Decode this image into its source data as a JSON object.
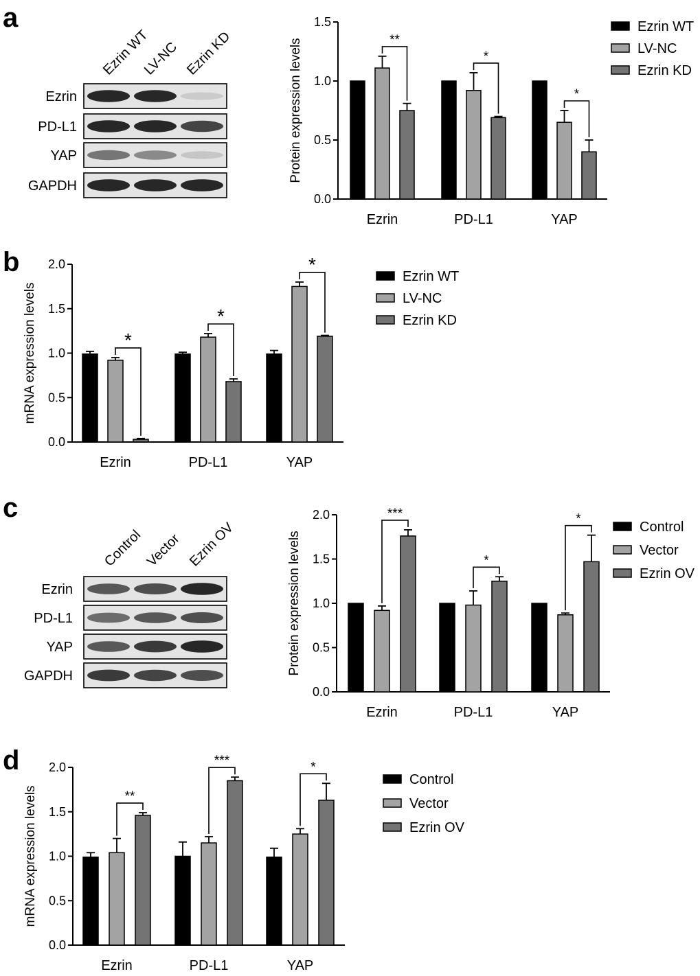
{
  "panel_labels": [
    "a",
    "b",
    "c",
    "d"
  ],
  "colors": {
    "black": "#000000",
    "light_gray": "#a3a3a3",
    "dark_gray": "#747474",
    "membrane": "#e4e4e4",
    "band": "#1c1c1c"
  },
  "blots": [
    {
      "lanes": [
        "Ezrin WT",
        "LV-NC",
        "Ezrin KD"
      ],
      "rows": [
        "Ezrin",
        "PD-L1",
        "YAP",
        "GAPDH"
      ],
      "band_intensity": [
        [
          0.95,
          0.95,
          0.12
        ],
        [
          0.95,
          0.95,
          0.8
        ],
        [
          0.55,
          0.45,
          0.15
        ],
        [
          0.95,
          0.95,
          0.95
        ]
      ]
    },
    {
      "lanes": [
        "Control",
        "Vector",
        "Ezrin OV"
      ],
      "rows": [
        "Ezrin",
        "PD-L1",
        "YAP",
        "GAPDH"
      ],
      "band_intensity": [
        [
          0.7,
          0.75,
          0.95
        ],
        [
          0.6,
          0.7,
          0.75
        ],
        [
          0.7,
          0.85,
          0.95
        ],
        [
          0.85,
          0.8,
          0.75
        ]
      ]
    }
  ],
  "chart_data": [
    {
      "panel": "a",
      "type": "bar",
      "ylabel": "Protein expression levels",
      "ylim": [
        0,
        1.5
      ],
      "yticks": [
        "0.0",
        "0.5",
        "1.0",
        "1.5"
      ],
      "categories": [
        "Ezrin",
        "PD-L1",
        "YAP"
      ],
      "series": [
        {
          "name": "Ezrin WT",
          "values": [
            1.0,
            1.0,
            1.0
          ],
          "errors": [
            0,
            0,
            0
          ]
        },
        {
          "name": "LV-NC",
          "values": [
            1.11,
            0.92,
            0.65
          ],
          "errors": [
            0.1,
            0.15,
            0.1
          ]
        },
        {
          "name": "Ezrin KD",
          "values": [
            0.75,
            0.69,
            0.4
          ],
          "errors": [
            0.06,
            0.01,
            0.1
          ]
        }
      ],
      "significance": [
        "**",
        "*",
        "*"
      ],
      "legend_position": "top-right"
    },
    {
      "panel": "b",
      "type": "bar",
      "ylabel": "mRNA expression levels",
      "ylim": [
        0,
        2.0
      ],
      "yticks": [
        "0.0",
        "0.5",
        "1.0",
        "1.5",
        "2.0"
      ],
      "categories": [
        "Ezrin",
        "PD-L1",
        "YAP"
      ],
      "series": [
        {
          "name": "Ezrin WT",
          "values": [
            0.99,
            0.99,
            0.99
          ],
          "errors": [
            0.03,
            0.02,
            0.04
          ]
        },
        {
          "name": "LV-NC",
          "values": [
            0.92,
            1.18,
            1.75
          ],
          "errors": [
            0.03,
            0.04,
            0.05
          ]
        },
        {
          "name": "Ezrin KD",
          "values": [
            0.03,
            0.68,
            1.19
          ],
          "errors": [
            0.01,
            0.03,
            0.01
          ]
        }
      ],
      "significance": [
        "*",
        "*",
        "*"
      ],
      "legend_position": "right"
    },
    {
      "panel": "c",
      "type": "bar",
      "ylabel": "Protein expression levels",
      "ylim": [
        0,
        2.0
      ],
      "yticks": [
        "0.0",
        "0.5",
        "1.0",
        "1.5",
        "2.0"
      ],
      "categories": [
        "Ezrin",
        "PD-L1",
        "YAP"
      ],
      "series": [
        {
          "name": "Control",
          "values": [
            1.0,
            1.0,
            1.0
          ],
          "errors": [
            0,
            0,
            0
          ]
        },
        {
          "name": "Vector",
          "values": [
            0.92,
            0.98,
            0.87
          ],
          "errors": [
            0.05,
            0.16,
            0.02
          ]
        },
        {
          "name": "Ezrin OV",
          "values": [
            1.76,
            1.25,
            1.47
          ],
          "errors": [
            0.07,
            0.05,
            0.3
          ]
        }
      ],
      "significance": [
        "***",
        "*",
        "*"
      ],
      "legend_position": "top-right"
    },
    {
      "panel": "d",
      "type": "bar",
      "ylabel": "mRNA expression levels",
      "ylim": [
        0,
        2.0
      ],
      "yticks": [
        "0.0",
        "0.5",
        "1.0",
        "1.5",
        "2.0"
      ],
      "categories": [
        "Ezrin",
        "PD-L1",
        "YAP"
      ],
      "series": [
        {
          "name": "Control",
          "values": [
            0.99,
            1.0,
            0.99
          ],
          "errors": [
            0.05,
            0.16,
            0.1
          ]
        },
        {
          "name": "Vector",
          "values": [
            1.04,
            1.15,
            1.25
          ],
          "errors": [
            0.16,
            0.07,
            0.06
          ]
        },
        {
          "name": "Ezrin OV",
          "values": [
            1.46,
            1.85,
            1.63
          ],
          "errors": [
            0.03,
            0.04,
            0.19
          ]
        }
      ],
      "significance": [
        "**",
        "***",
        "*"
      ],
      "legend_position": "right"
    }
  ]
}
